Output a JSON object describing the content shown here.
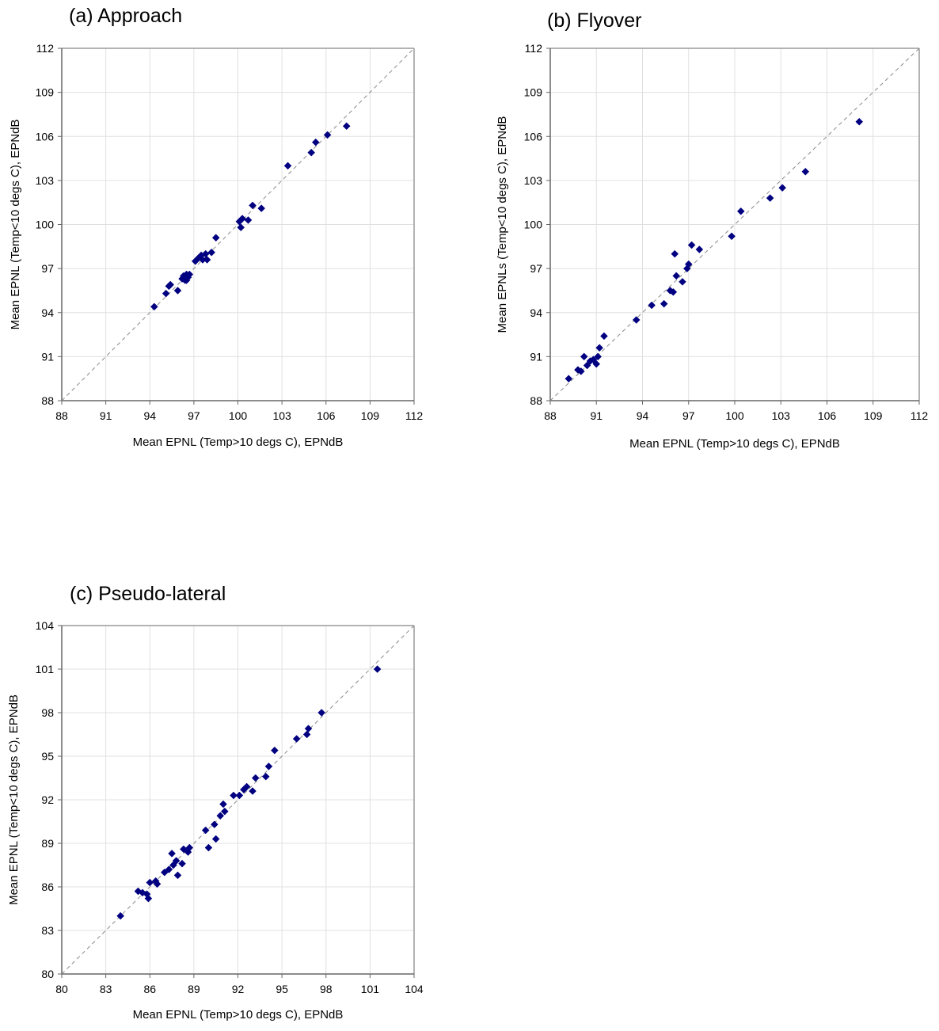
{
  "chart_data": [
    {
      "id": "a",
      "type": "scatter",
      "title": "(a) Approach",
      "xlabel": "Mean EPNL (Temp>10 degs C), EPNdB",
      "ylabel": "Mean EPNL (Temp<10 degs C), EPNdB",
      "xlim": [
        88,
        112
      ],
      "ylim": [
        88,
        112
      ],
      "ticks": [
        "88",
        "91",
        "94",
        "97",
        "100",
        "103",
        "106",
        "109",
        "112"
      ],
      "grid": true,
      "reference_line": "y=x dashed",
      "marker_color": "#000080",
      "points": [
        [
          94.3,
          94.4
        ],
        [
          95.1,
          95.3
        ],
        [
          95.3,
          95.8
        ],
        [
          95.4,
          95.9
        ],
        [
          95.9,
          95.5
        ],
        [
          96.2,
          96.3
        ],
        [
          96.3,
          96.5
        ],
        [
          96.4,
          96.2
        ],
        [
          96.5,
          96.6
        ],
        [
          96.6,
          96.4
        ],
        [
          96.7,
          96.6
        ],
        [
          96.5,
          96.2
        ],
        [
          97.1,
          97.5
        ],
        [
          97.3,
          97.7
        ],
        [
          97.5,
          97.9
        ],
        [
          97.6,
          97.6
        ],
        [
          97.8,
          98.0
        ],
        [
          97.9,
          97.6
        ],
        [
          98.2,
          98.1
        ],
        [
          98.5,
          99.1
        ],
        [
          100.1,
          100.2
        ],
        [
          100.2,
          99.8
        ],
        [
          100.3,
          100.4
        ],
        [
          100.7,
          100.3
        ],
        [
          101.0,
          101.3
        ],
        [
          101.6,
          101.1
        ],
        [
          103.4,
          104.0
        ],
        [
          105.0,
          104.9
        ],
        [
          105.3,
          105.6
        ],
        [
          106.1,
          106.1
        ],
        [
          107.4,
          106.7
        ]
      ]
    },
    {
      "id": "b",
      "type": "scatter",
      "title": "(b) Flyover",
      "xlabel": "Mean EPNL (Temp>10 degs C), EPNdB",
      "ylabel": "Mean EPNLs (Temp<10 degs C), EPNdB",
      "xlim": [
        88,
        112
      ],
      "ylim": [
        88,
        112
      ],
      "ticks": [
        "88",
        "91",
        "94",
        "97",
        "100",
        "103",
        "106",
        "109",
        "112"
      ],
      "grid": true,
      "reference_line": "y=x dashed",
      "marker_color": "#000080",
      "points": [
        [
          89.2,
          89.5
        ],
        [
          89.8,
          90.1
        ],
        [
          90.0,
          90.0
        ],
        [
          90.2,
          91.0
        ],
        [
          90.4,
          90.4
        ],
        [
          90.6,
          90.7
        ],
        [
          90.8,
          90.8
        ],
        [
          91.0,
          90.5
        ],
        [
          91.1,
          91.0
        ],
        [
          91.2,
          91.6
        ],
        [
          91.5,
          92.4
        ],
        [
          93.6,
          93.5
        ],
        [
          94.6,
          94.5
        ],
        [
          95.4,
          94.6
        ],
        [
          95.8,
          95.5
        ],
        [
          96.0,
          95.4
        ],
        [
          96.1,
          98.0
        ],
        [
          96.2,
          96.5
        ],
        [
          96.6,
          96.1
        ],
        [
          96.9,
          97.0
        ],
        [
          97.0,
          97.3
        ],
        [
          97.2,
          98.6
        ],
        [
          97.7,
          98.3
        ],
        [
          99.8,
          99.2
        ],
        [
          100.4,
          100.9
        ],
        [
          102.3,
          101.8
        ],
        [
          103.1,
          102.5
        ],
        [
          104.6,
          103.6
        ],
        [
          108.1,
          107.0
        ]
      ]
    },
    {
      "id": "c",
      "type": "scatter",
      "title": "(c) Pseudo-lateral",
      "xlabel": "Mean EPNL (Temp>10 degs C), EPNdB",
      "ylabel": "Mean EPNL (Temp<10 degs C), EPNdB",
      "xlim": [
        80,
        104
      ],
      "ylim": [
        80,
        104
      ],
      "ticks": [
        "80",
        "83",
        "86",
        "89",
        "92",
        "95",
        "98",
        "101",
        "104"
      ],
      "grid": true,
      "reference_line": "y=x dashed",
      "marker_color": "#000080",
      "points": [
        [
          84.0,
          84.0
        ],
        [
          85.2,
          85.7
        ],
        [
          85.5,
          85.6
        ],
        [
          85.8,
          85.5
        ],
        [
          85.9,
          85.2
        ],
        [
          86.0,
          86.3
        ],
        [
          86.4,
          86.4
        ],
        [
          86.5,
          86.2
        ],
        [
          87.0,
          87.0
        ],
        [
          87.3,
          87.2
        ],
        [
          87.5,
          88.3
        ],
        [
          87.6,
          87.5
        ],
        [
          87.8,
          87.8
        ],
        [
          87.9,
          86.8
        ],
        [
          88.2,
          87.6
        ],
        [
          88.3,
          88.6
        ],
        [
          88.6,
          88.4
        ],
        [
          88.7,
          88.7
        ],
        [
          89.8,
          89.9
        ],
        [
          90.0,
          88.7
        ],
        [
          90.4,
          90.3
        ],
        [
          90.5,
          89.3
        ],
        [
          90.8,
          90.9
        ],
        [
          91.0,
          91.7
        ],
        [
          91.1,
          91.2
        ],
        [
          91.7,
          92.3
        ],
        [
          92.1,
          92.3
        ],
        [
          92.4,
          92.7
        ],
        [
          92.6,
          92.9
        ],
        [
          93.0,
          92.6
        ],
        [
          93.2,
          93.5
        ],
        [
          93.9,
          93.6
        ],
        [
          94.1,
          94.3
        ],
        [
          94.5,
          95.4
        ],
        [
          96.0,
          96.2
        ],
        [
          96.7,
          96.5
        ],
        [
          96.8,
          96.9
        ],
        [
          97.7,
          98.0
        ],
        [
          101.5,
          101.0
        ]
      ]
    }
  ]
}
